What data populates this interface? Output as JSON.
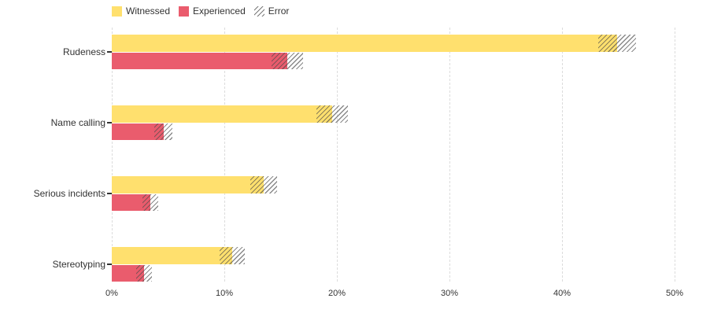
{
  "chart_data": {
    "type": "bar",
    "orientation": "horizontal",
    "title": "",
    "xlabel": "",
    "ylabel": "",
    "categories": [
      "Rudeness",
      "Name calling",
      "Serious incidents",
      "Stereotyping"
    ],
    "series": [
      {
        "name": "Witnessed",
        "color": "#FFE06E",
        "values": [
          44.9,
          19.6,
          13.5,
          10.7
        ],
        "errors": [
          1.7,
          1.4,
          1.2,
          1.1
        ]
      },
      {
        "name": "Experienced",
        "color": "#EA5C6D",
        "values": [
          15.6,
          4.6,
          3.4,
          2.9
        ],
        "errors": [
          1.4,
          0.8,
          0.7,
          0.7
        ]
      }
    ],
    "error_legend_label": "Error",
    "x_ticks": [
      "0%",
      "10%",
      "20%",
      "30%",
      "40%",
      "50%"
    ],
    "x_tick_values": [
      0,
      10,
      20,
      30,
      40,
      50
    ],
    "xlim": [
      0,
      50
    ],
    "grid": "vertical-dashed",
    "legend_position": "top-left",
    "colors": {
      "grid": "#dcdcdc",
      "text": "#333333",
      "hatch_line": "#4a4a4a"
    }
  }
}
